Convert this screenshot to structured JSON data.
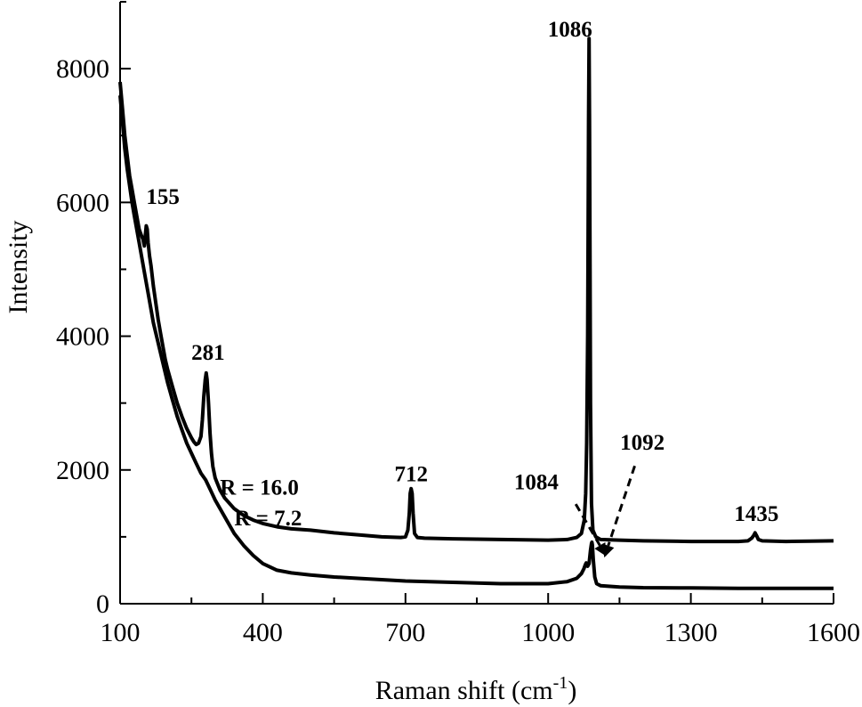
{
  "chart_data": {
    "type": "line",
    "xlabel": "Raman shift (cm",
    "xlabel_sup": "-1",
    "xlabel_close": ")",
    "ylabel": "Intensity",
    "xlim": [
      100,
      1600
    ],
    "ylim": [
      0,
      9000
    ],
    "x_ticks": [
      100,
      400,
      700,
      1000,
      1300,
      1600
    ],
    "y_ticks": [
      0,
      2000,
      4000,
      6000,
      8000
    ],
    "x_minor_ticks": [
      250,
      550,
      850,
      1150,
      1450
    ],
    "y_minor_ticks": [
      1000,
      3000,
      5000,
      7000,
      9000
    ],
    "series": [
      {
        "label": "R = 16.0",
        "label_pos": [
          310,
          1630
        ],
        "x": [
          100,
          105,
          110,
          115,
          120,
          125,
          130,
          135,
          140,
          145,
          148,
          151,
          153,
          155,
          157,
          159,
          162,
          165,
          170,
          175,
          180,
          185,
          190,
          195,
          200,
          210,
          220,
          230,
          240,
          250,
          255,
          260,
          265,
          270,
          273,
          276,
          279,
          281,
          283,
          286,
          289,
          292,
          295,
          300,
          310,
          320,
          340,
          360,
          380,
          400,
          430,
          460,
          500,
          550,
          600,
          650,
          690,
          700,
          705,
          708,
          710,
          712,
          714,
          716,
          719,
          725,
          740,
          800,
          900,
          1000,
          1040,
          1060,
          1070,
          1076,
          1079,
          1081,
          1083,
          1084,
          1085,
          1086,
          1087,
          1088,
          1089,
          1091,
          1094,
          1100,
          1110,
          1150,
          1200,
          1300,
          1400,
          1420,
          1428,
          1432,
          1435,
          1438,
          1442,
          1450,
          1500,
          1550,
          1600
        ],
        "y": [
          7800,
          7400,
          7000,
          6700,
          6400,
          6200,
          6000,
          5800,
          5600,
          5500,
          5450,
          5350,
          5500,
          5650,
          5600,
          5400,
          5200,
          5050,
          4750,
          4500,
          4250,
          4050,
          3850,
          3650,
          3500,
          3250,
          3000,
          2800,
          2620,
          2480,
          2420,
          2380,
          2400,
          2500,
          2750,
          3100,
          3350,
          3450,
          3350,
          3000,
          2550,
          2250,
          2050,
          1880,
          1700,
          1580,
          1420,
          1320,
          1250,
          1200,
          1150,
          1120,
          1100,
          1060,
          1030,
          1000,
          990,
          1000,
          1100,
          1350,
          1650,
          1720,
          1650,
          1350,
          1050,
          990,
          980,
          970,
          960,
          950,
          960,
          990,
          1050,
          1250,
          1650,
          2400,
          4000,
          5500,
          7200,
          8450,
          7200,
          5000,
          3000,
          1500,
          1100,
          1000,
          960,
          950,
          940,
          930,
          930,
          940,
          980,
          1020,
          1060,
          1020,
          960,
          940,
          930,
          935,
          940
        ]
      },
      {
        "label": "R = 7.2",
        "label_pos": [
          340,
          1170
        ],
        "x": [
          100,
          105,
          110,
          115,
          120,
          125,
          130,
          135,
          140,
          150,
          160,
          170,
          180,
          190,
          200,
          210,
          220,
          230,
          240,
          250,
          260,
          270,
          280,
          290,
          300,
          320,
          340,
          360,
          380,
          400,
          430,
          460,
          500,
          550,
          600,
          650,
          700,
          750,
          800,
          850,
          900,
          950,
          1000,
          1040,
          1060,
          1070,
          1075,
          1078,
          1080,
          1083,
          1086,
          1089,
          1091,
          1092,
          1093,
          1095,
          1098,
          1102,
          1110,
          1130,
          1150,
          1200,
          1300,
          1400,
          1500,
          1600
        ],
        "y": [
          7600,
          7200,
          6800,
          6500,
          6250,
          6000,
          5800,
          5600,
          5400,
          5000,
          4600,
          4200,
          3900,
          3600,
          3300,
          3050,
          2800,
          2600,
          2400,
          2250,
          2100,
          1950,
          1850,
          1700,
          1550,
          1300,
          1050,
          870,
          720,
          600,
          500,
          460,
          430,
          400,
          380,
          360,
          340,
          330,
          320,
          310,
          300,
          300,
          300,
          330,
          380,
          450,
          520,
          580,
          610,
          560,
          600,
          800,
          900,
          920,
          880,
          650,
          400,
          300,
          270,
          260,
          250,
          240,
          235,
          230,
          230,
          230
        ]
      }
    ],
    "peak_labels": [
      {
        "text": "155",
        "x": 190,
        "y": 5980
      },
      {
        "text": "281",
        "x": 285,
        "y": 3650
      },
      {
        "text": "712",
        "x": 712,
        "y": 1830
      },
      {
        "text": "1084",
        "x": 975,
        "y": 1710
      },
      {
        "text": "1086",
        "x": 1046,
        "y": 8480
      },
      {
        "text": "1092",
        "x": 1198,
        "y": 2300
      },
      {
        "text": "1435",
        "x": 1438,
        "y": 1240
      }
    ],
    "arrows": [
      {
        "from": [
          1058,
          1490
        ],
        "to": [
          1122,
          710
        ]
      },
      {
        "from": [
          1182,
          2060
        ],
        "to": [
          1118,
          690
        ]
      }
    ]
  }
}
